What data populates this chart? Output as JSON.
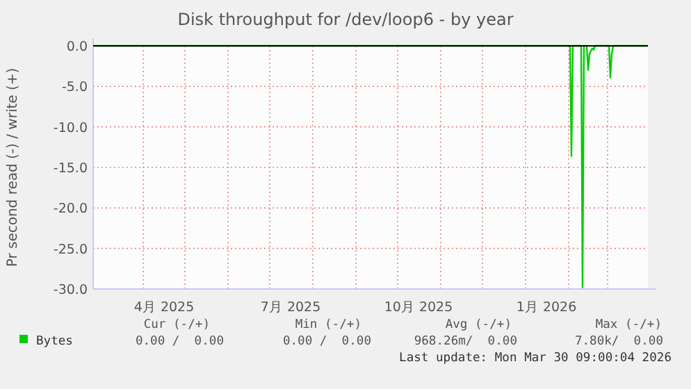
{
  "chart_data": {
    "type": "line",
    "title": "Disk throughput for /dev/loop6 - by year",
    "ylabel": "Pr second read (-) / write (+)",
    "x": [
      "2025-02-24",
      "2026-02-02",
      "2026-02-03",
      "2026-02-04",
      "2026-02-10",
      "2026-02-11",
      "2026-02-12",
      "2026-02-14",
      "2026-02-15",
      "2026-02-16",
      "2026-02-17",
      "2026-02-18",
      "2026-02-19",
      "2026-02-20",
      "2026-03-02",
      "2026-03-03",
      "2026-03-04",
      "2026-03-05",
      "2026-03-30"
    ],
    "series": [
      {
        "name": "Bytes",
        "color": "#00cc00",
        "values": [
          0,
          0,
          -13.6,
          0,
          0,
          -29.8,
          0,
          0,
          -3.0,
          -1.0,
          -0.6,
          -0.3,
          -0.5,
          0,
          0,
          -3.9,
          -1.0,
          0,
          0
        ]
      }
    ],
    "xlim": [
      "2025-02-24",
      "2026-03-30"
    ],
    "xticks": [
      {
        "value": "2025-04-01",
        "label": null
      },
      {
        "value": "2025-04-16",
        "label": "4月 2025"
      },
      {
        "value": "2025-05-01",
        "label": null
      },
      {
        "value": "2025-06-01",
        "label": null
      },
      {
        "value": "2025-07-01",
        "label": null
      },
      {
        "value": "2025-07-16",
        "label": "7月 2025"
      },
      {
        "value": "2025-08-01",
        "label": null
      },
      {
        "value": "2025-09-01",
        "label": null
      },
      {
        "value": "2025-10-01",
        "label": null
      },
      {
        "value": "2025-10-16",
        "label": "10月 2025"
      },
      {
        "value": "2025-11-01",
        "label": null
      },
      {
        "value": "2025-12-01",
        "label": null
      },
      {
        "value": "2026-01-01",
        "label": null
      },
      {
        "value": "2026-01-16",
        "label": "1月 2026"
      },
      {
        "value": "2026-02-01",
        "label": null
      },
      {
        "value": "2026-03-01",
        "label": null
      }
    ],
    "ylim": [
      -30,
      0
    ],
    "yticks": [
      {
        "value": 0,
        "label": "0.0"
      },
      {
        "value": -5,
        "label": "-5.0"
      },
      {
        "value": -10,
        "label": "-10.0"
      },
      {
        "value": -15,
        "label": "-15.0"
      },
      {
        "value": -20,
        "label": "-20.0"
      },
      {
        "value": -25,
        "label": "-25.0"
      },
      {
        "value": -30,
        "label": "-30.0"
      }
    ],
    "ref_lines": [
      {
        "axis": "y",
        "value": 0,
        "color": "#000000"
      }
    ],
    "grid": true,
    "legend": "bottom left",
    "annotations": [
      "Cur (-/+)",
      "Min (-/+)",
      "Avg (-/+)",
      "Max (-/+)",
      "0.00 /  0.00",
      "0.00 /  0.00",
      "968.26m/  0.00",
      "7.80k/  0.00",
      "Last update: Mon Mar 30 09:00:04 2026"
    ]
  }
}
